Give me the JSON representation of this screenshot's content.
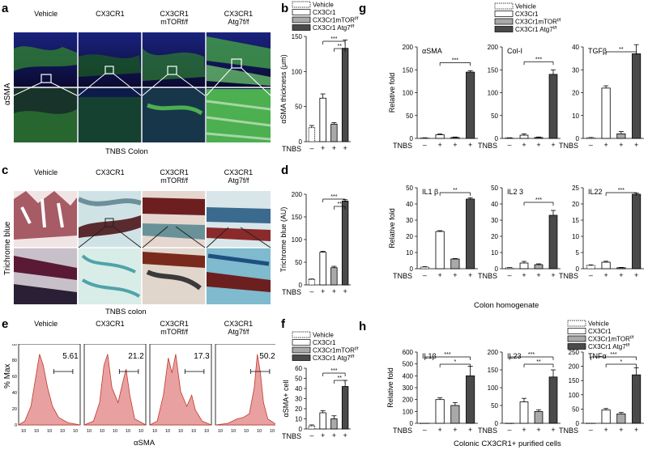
{
  "panels": {
    "a": {
      "letter": "a",
      "columns": [
        "Vehicle",
        "CX3CR1",
        "CX3CR1\nmTORf/f",
        "CX3CR1\nAtg7f/f"
      ],
      "row_label": "αSMA",
      "caption": "TNBS Colon"
    },
    "c": {
      "letter": "c",
      "columns": [
        "Vehicle",
        "CX3CR1",
        "CX3CR1\nmTORf/f",
        "CX3CR1\nAtg7f/f"
      ],
      "row_label": "Trichrome blue",
      "caption": "TNBS colon"
    },
    "e": {
      "letter": "e",
      "columns": [
        "Vehicle",
        "CX3CR1",
        "CX3CR1\nmTORf/f",
        "CX3CR1\nAtg7f/f"
      ],
      "ylabel": "% Max",
      "xlabel": "αSMA",
      "percents": [
        "5.61",
        "21.2",
        "17.3",
        "50.2"
      ],
      "ticks": [
        "0",
        "20",
        "40",
        "60",
        "80",
        "100"
      ]
    },
    "b": {
      "letter": "b"
    },
    "d": {
      "letter": "d"
    },
    "f": {
      "letter": "f"
    },
    "g": {
      "letter": "g",
      "caption": "Colon homogenate"
    },
    "h": {
      "letter": "h",
      "caption": "Colonic CX3CR1+ purified cells"
    }
  },
  "legend_bdf": [
    "Vehicle",
    "CX3Cr1",
    "CX3Cr1mTOR",
    "CX3Cr1 Atg7"
  ],
  "legend_g": [
    "Vehicle",
    "CX3Cr1",
    "CX3Cr1mTOR",
    "CX3Cr1 Atg7"
  ],
  "legend_h": [
    "Vehicle",
    "CX3Cr1",
    "CX3Cr1mTOR",
    "CX3Cr1 Atg7"
  ],
  "legend_sup": "f/f",
  "tnbs_label": "TNBS",
  "tnbs_signs": [
    "–",
    "+",
    "+",
    "+"
  ],
  "colors": {
    "vehicle": "#ffffff",
    "cx3cr1": "#ffffff",
    "mtor": "#a9a9a9",
    "atg7": "#4a4a4a",
    "hist": "#e9a0a0",
    "hist_line": "#c0392b"
  },
  "chart_data": [
    {
      "id": "b",
      "type": "bar",
      "categories": [
        "Vehicle",
        "CX3Cr1",
        "CX3Cr1mTOR",
        "CX3Cr1 Atg7"
      ],
      "values": [
        20,
        62,
        25,
        133
      ],
      "errors": [
        3,
        6,
        2,
        12
      ],
      "ylabel": "αSMA thickness (μm)",
      "ylim": [
        0,
        150
      ],
      "yticks": [
        "0",
        "50",
        "100",
        "150"
      ],
      "sig": [
        "***",
        "**"
      ]
    },
    {
      "id": "d",
      "type": "bar",
      "categories": [
        "Vehicle",
        "CX3Cr1",
        "CX3Cr1mTOR",
        "CX3Cr1 Atg7"
      ],
      "values": [
        12,
        72,
        38,
        185
      ],
      "errors": [
        1,
        2,
        3,
        3
      ],
      "ylabel": "Trichrome blue (AU)",
      "ylim": [
        0,
        200
      ],
      "yticks": [
        "0",
        "50",
        "100",
        "150",
        "200"
      ],
      "sig": [
        "***",
        "**"
      ]
    },
    {
      "id": "f",
      "type": "bar",
      "categories": [
        "Vehicle",
        "CX3Cr1",
        "CX3Cr1mTOR",
        "CX3Cr1 Atg7"
      ],
      "values": [
        3,
        16,
        10,
        42
      ],
      "errors": [
        1,
        2,
        3,
        6
      ],
      "ylabel": "αSMA+ cell",
      "ylim": [
        0,
        60
      ],
      "yticks": [
        "0",
        "10",
        "20",
        "30",
        "40",
        "50",
        "60"
      ],
      "sig": [
        "***",
        "**"
      ]
    },
    {
      "id": "g_asma",
      "type": "bar",
      "title": "αSMA",
      "ylabel": "Relative fold",
      "values": [
        1,
        8,
        2,
        145
      ],
      "errors": [
        0.5,
        2,
        1,
        3
      ],
      "ylim": [
        0,
        200
      ],
      "yticks": [
        "0",
        "50",
        "100",
        "150",
        "200"
      ],
      "sig": [
        "***"
      ]
    },
    {
      "id": "g_col",
      "type": "bar",
      "title": "Col-I",
      "values": [
        1,
        7,
        2,
        140
      ],
      "errors": [
        0.5,
        3,
        1,
        10
      ],
      "ylim": [
        0,
        200
      ],
      "yticks": [
        "0",
        "50",
        "100",
        "150",
        "200"
      ],
      "sig": [
        "***"
      ]
    },
    {
      "id": "g_tgf",
      "type": "bar",
      "title": "TGFβ",
      "values": [
        0.3,
        22,
        2,
        37
      ],
      "errors": [
        0.1,
        1,
        1,
        4
      ],
      "ylim": [
        0,
        40
      ],
      "yticks": [
        "0",
        "10",
        "20",
        "30",
        "40"
      ],
      "sig": [
        "**"
      ]
    },
    {
      "id": "g_il1",
      "type": "bar",
      "title": "IL1 β",
      "ylabel": "Relative fold",
      "values": [
        1,
        23,
        6,
        43
      ],
      "errors": [
        0.3,
        0.5,
        0.3,
        0.8
      ],
      "ylim": [
        0,
        50
      ],
      "yticks": [
        "0",
        "10",
        "20",
        "30",
        "40",
        "50"
      ],
      "sig": [
        "**"
      ]
    },
    {
      "id": "g_il23",
      "type": "bar",
      "title": "IL2 3",
      "values": [
        0.5,
        3.5,
        2.5,
        33
      ],
      "errors": [
        0.2,
        1,
        0.5,
        3
      ],
      "ylim": [
        0,
        50
      ],
      "yticks": [
        "0",
        "10",
        "20",
        "30",
        "40",
        "50"
      ],
      "sig": [
        "***"
      ]
    },
    {
      "id": "g_il22",
      "type": "bar",
      "title": "IL22",
      "values": [
        1,
        2,
        0.3,
        23
      ],
      "errors": [
        0.2,
        0.3,
        0.1,
        0.4
      ],
      "ylim": [
        0,
        25
      ],
      "yticks": [
        "0",
        "5",
        "10",
        "15",
        "20",
        "25"
      ],
      "sig": [
        "***"
      ]
    },
    {
      "id": "h_il1",
      "type": "bar",
      "title": "IL1β",
      "ylabel": "Relative fold",
      "values": [
        0,
        200,
        150,
        400
      ],
      "errors": [
        0,
        15,
        25,
        80
      ],
      "ylim": [
        0,
        600
      ],
      "yticks": [
        "0",
        "100",
        "200",
        "300",
        "400",
        "500",
        "600"
      ],
      "sig": [
        "***",
        "*"
      ]
    },
    {
      "id": "h_il23",
      "type": "bar",
      "title": "IL23",
      "values": [
        0,
        60,
        33,
        130
      ],
      "errors": [
        0,
        10,
        5,
        20
      ],
      "ylim": [
        0,
        200
      ],
      "yticks": [
        "0",
        "50",
        "100",
        "150",
        "200"
      ],
      "sig": [
        "***",
        "**"
      ]
    },
    {
      "id": "h_tnf",
      "type": "bar",
      "title": "TNFα",
      "values": [
        0,
        47,
        33,
        170
      ],
      "errors": [
        0,
        5,
        5,
        25
      ],
      "ylim": [
        0,
        250
      ],
      "yticks": [
        "0",
        "50",
        "100",
        "150",
        "200",
        "250"
      ],
      "sig": [
        "***",
        "*"
      ]
    }
  ]
}
